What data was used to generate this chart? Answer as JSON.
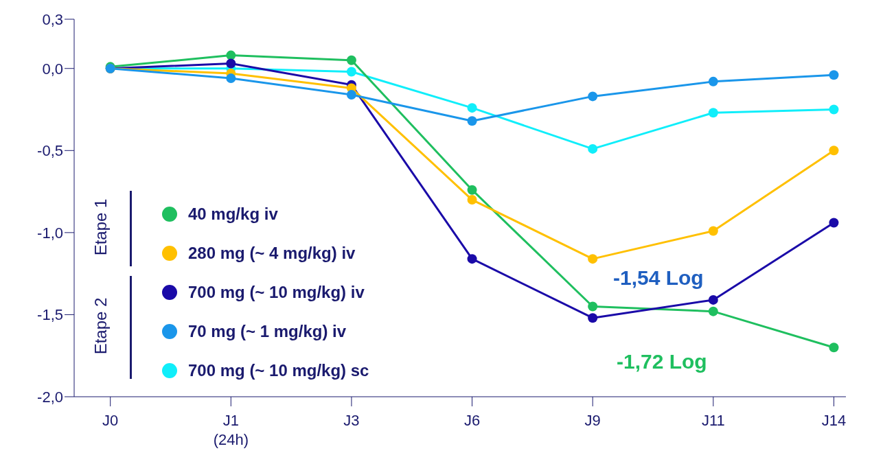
{
  "chart_data": {
    "type": "line",
    "categories": [
      "J0",
      "J1\n(24h)",
      "J3",
      "J6",
      "J9",
      "J11",
      "J14"
    ],
    "series": [
      {
        "name": "40 mg/kg iv",
        "color": "#1fbf5f",
        "values": [
          0.01,
          0.08,
          0.05,
          -0.74,
          -1.45,
          -1.48,
          -1.7
        ]
      },
      {
        "name": "280 mg (~ 4 mg/kg) iv",
        "color": "#ffc000",
        "values": [
          0,
          -0.03,
          -0.12,
          -0.8,
          -1.16,
          -0.99,
          -0.5
        ]
      },
      {
        "name": "700 mg (~ 10 mg/kg) iv",
        "color": "#1a0aa8",
        "values": [
          0,
          0.03,
          -0.1,
          -1.16,
          -1.52,
          -1.41,
          -0.94
        ]
      },
      {
        "name": "70 mg (~ 1 mg/kg) iv",
        "color": "#1a96ea",
        "values": [
          0,
          -0.06,
          -0.16,
          -0.32,
          -0.17,
          -0.08,
          -0.04
        ]
      },
      {
        "name": "700 mg (~ 10 mg/kg) sc",
        "color": "#10eefa",
        "values": [
          0,
          0,
          -0.02,
          -0.24,
          -0.49,
          -0.27,
          -0.25
        ]
      }
    ],
    "ylim": [
      -2.0,
      0.3
    ],
    "yticks": [
      {
        "value": -2,
        "label": "-2,0"
      },
      {
        "value": -1.5,
        "label": "-1,5"
      },
      {
        "value": -1,
        "label": "-1,0"
      },
      {
        "value": -0.5,
        "label": "-0,5"
      },
      {
        "value": 0,
        "label": "0,0"
      },
      {
        "value": 0.3,
        "label": "0,3"
      }
    ],
    "annotations": [
      "Etape 1",
      "Etape 2",
      "-1,54 Log",
      "-1,72 Log"
    ],
    "legend": "left",
    "marker": "circle",
    "line_style": "solid"
  }
}
